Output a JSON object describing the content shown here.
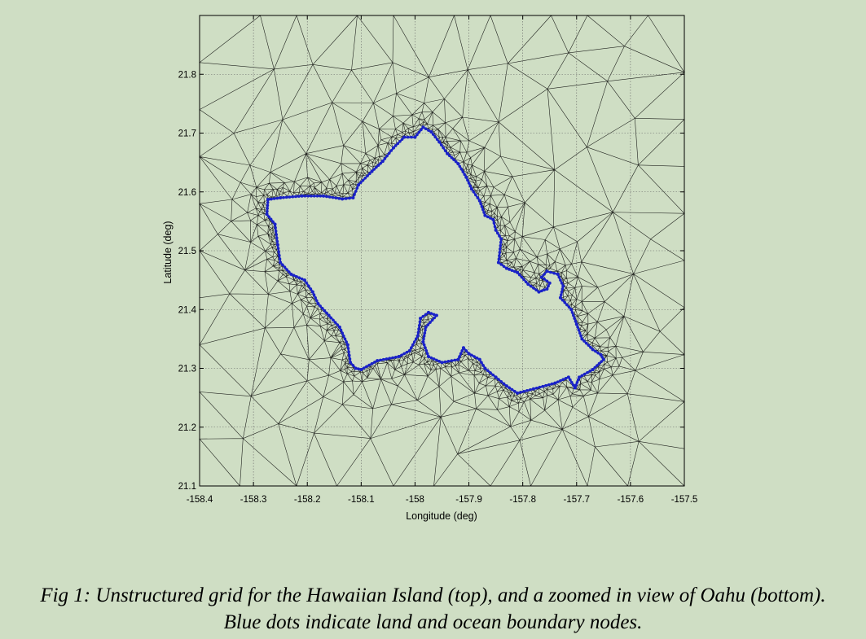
{
  "chart_data": {
    "type": "scatter",
    "title": "",
    "xlabel": "Longitude (deg)",
    "ylabel": "Latitude (deg)",
    "xlim": [
      -158.4,
      -157.5
    ],
    "ylim": [
      21.1,
      21.9
    ],
    "xticks": [
      "-158.4",
      "-158.3",
      "-158.2",
      "-158.1",
      "-158",
      "-157.9",
      "-157.8",
      "-157.7",
      "-157.6",
      "-157.5"
    ],
    "yticks": [
      "21.1",
      "21.2",
      "21.3",
      "21.4",
      "21.5",
      "21.6",
      "21.7",
      "21.8"
    ],
    "grid": true,
    "mesh_color": "#000000",
    "node_color": "#1a22c8",
    "series": [
      {
        "values": [
          [
            -158.273,
            21.587
          ],
          [
            -158.25,
            21.59
          ],
          [
            -158.21,
            21.593
          ],
          [
            -158.17,
            21.593
          ],
          [
            -158.135,
            21.588
          ],
          [
            -158.115,
            21.59
          ],
          [
            -158.105,
            21.612
          ],
          [
            -158.08,
            21.635
          ],
          [
            -158.06,
            21.652
          ],
          [
            -158.04,
            21.675
          ],
          [
            -158.02,
            21.693
          ],
          [
            -158.0,
            21.693
          ],
          [
            -157.985,
            21.71
          ],
          [
            -157.97,
            21.702
          ],
          [
            -157.955,
            21.685
          ],
          [
            -157.94,
            21.665
          ],
          [
            -157.92,
            21.648
          ],
          [
            -157.905,
            21.625
          ],
          [
            -157.895,
            21.605
          ],
          [
            -157.88,
            21.585
          ],
          [
            -157.87,
            21.56
          ],
          [
            -157.855,
            21.553
          ],
          [
            -157.85,
            21.535
          ],
          [
            -157.84,
            21.52
          ],
          [
            -157.845,
            21.48
          ],
          [
            -157.83,
            21.47
          ],
          [
            -157.81,
            21.463
          ],
          [
            -157.79,
            21.443
          ],
          [
            -157.77,
            21.43
          ],
          [
            -157.755,
            21.435
          ],
          [
            -157.75,
            21.445
          ],
          [
            -157.765,
            21.455
          ],
          [
            -157.755,
            21.465
          ],
          [
            -157.735,
            21.46
          ],
          [
            -157.725,
            21.44
          ],
          [
            -157.73,
            21.42
          ],
          [
            -157.71,
            21.4
          ],
          [
            -157.7,
            21.375
          ],
          [
            -157.69,
            21.35
          ],
          [
            -157.67,
            21.332
          ],
          [
            -157.655,
            21.323
          ],
          [
            -157.65,
            21.315
          ],
          [
            -157.67,
            21.298
          ],
          [
            -157.695,
            21.285
          ],
          [
            -157.703,
            21.267
          ],
          [
            -157.715,
            21.285
          ],
          [
            -157.74,
            21.275
          ],
          [
            -157.78,
            21.265
          ],
          [
            -157.81,
            21.258
          ],
          [
            -157.83,
            21.27
          ],
          [
            -157.85,
            21.285
          ],
          [
            -157.87,
            21.3
          ],
          [
            -157.88,
            21.315
          ],
          [
            -157.9,
            21.325
          ],
          [
            -157.91,
            21.335
          ],
          [
            -157.92,
            21.315
          ],
          [
            -157.95,
            21.31
          ],
          [
            -157.975,
            21.32
          ],
          [
            -157.985,
            21.345
          ],
          [
            -157.98,
            21.37
          ],
          [
            -157.96,
            21.39
          ],
          [
            -157.975,
            21.395
          ],
          [
            -157.99,
            21.385
          ],
          [
            -157.995,
            21.355
          ],
          [
            -158.01,
            21.33
          ],
          [
            -158.03,
            21.32
          ],
          [
            -158.07,
            21.313
          ],
          [
            -158.1,
            21.298
          ],
          [
            -158.11,
            21.3
          ],
          [
            -158.12,
            21.31
          ],
          [
            -158.125,
            21.34
          ],
          [
            -158.14,
            21.37
          ],
          [
            -158.16,
            21.39
          ],
          [
            -158.18,
            21.41
          ],
          [
            -158.19,
            21.43
          ],
          [
            -158.205,
            21.45
          ],
          [
            -158.23,
            21.46
          ],
          [
            -158.25,
            21.48
          ],
          [
            -158.255,
            21.51
          ],
          [
            -158.26,
            21.545
          ],
          [
            -158.275,
            21.562
          ],
          [
            -158.273,
            21.587
          ]
        ]
      }
    ]
  },
  "caption": {
    "line1": "Fig 1: Unstructured grid for the Hawaiian Island (top), and a zoomed in view of Oahu (bottom).",
    "line2": "Blue dots indicate land and ocean boundary nodes."
  }
}
